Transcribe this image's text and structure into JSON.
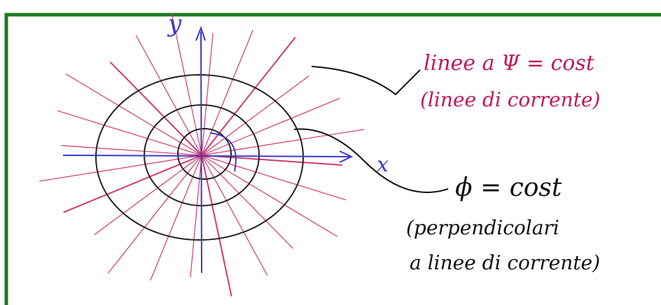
{
  "axes": {
    "y_label": "y",
    "x_label": "x"
  },
  "annotations": {
    "stream_lines": {
      "line1": "linee a Ψ = cost",
      "line2": "(linee di corrente)"
    },
    "potential_lines": {
      "line1": "ϕ = cost",
      "line2": "(perpendicolari",
      "line3": "a linee di corrente)"
    }
  }
}
